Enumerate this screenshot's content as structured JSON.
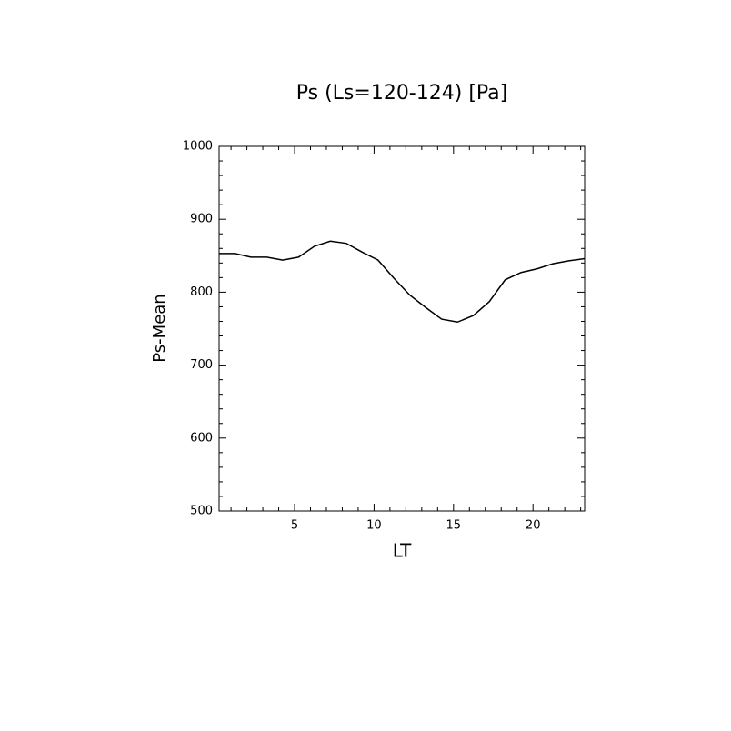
{
  "chart_data": {
    "type": "line",
    "title": "Ps (Ls=120-124) [Pa]",
    "xlabel": "LT",
    "ylabel": "Ps-Mean",
    "x": [
      0.25,
      1.25,
      2.25,
      3.25,
      4.25,
      5.25,
      6.25,
      7.25,
      8.25,
      9.25,
      10.25,
      11.25,
      12.25,
      13.25,
      14.25,
      15.25,
      16.25,
      17.25,
      18.25,
      19.25,
      20.25,
      21.25,
      22.25,
      23.25
    ],
    "series": [
      {
        "name": "Ps-Mean",
        "color": "#000000",
        "values": [
          853,
          853,
          848,
          848,
          844,
          848,
          863,
          870,
          867,
          855,
          844,
          819,
          796,
          779,
          763,
          759,
          768,
          787,
          817,
          827,
          832,
          839,
          843,
          846
        ]
      }
    ],
    "xlim": [
      0.25,
      23.25
    ],
    "xticks": [
      5,
      10,
      15,
      20
    ],
    "ylim": [
      500,
      1000
    ],
    "yticks": [
      500,
      600,
      700,
      800,
      900,
      1000
    ]
  }
}
